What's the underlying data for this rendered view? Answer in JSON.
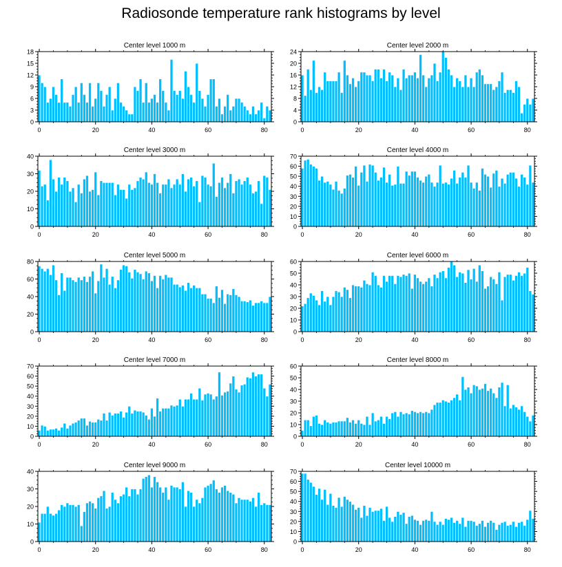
{
  "title": "Radiosonde temperature rank histograms by level",
  "colors": {
    "bar": "#00BFFF",
    "bar_edge": "#FFFFFF",
    "axis": "#000000"
  },
  "chart_data": [
    {
      "type": "bar",
      "title": "Center level 1000 m",
      "xlabel": "",
      "ylabel": "",
      "xlim": [
        -0.5,
        82.5
      ],
      "ylim": [
        0,
        18
      ],
      "xticks": [
        0,
        20,
        40,
        60,
        80
      ],
      "yticks": [
        0,
        3,
        6,
        9,
        12,
        15,
        18
      ],
      "values": [
        12,
        10,
        9,
        5,
        6,
        9,
        7,
        5,
        11,
        5,
        5,
        4,
        7,
        9,
        5,
        10,
        7,
        5,
        10,
        4,
        6,
        10,
        8,
        4,
        7,
        9,
        3,
        6,
        10,
        5,
        4,
        3,
        2,
        2,
        9,
        8,
        11,
        5,
        10,
        5,
        6,
        7,
        5,
        11,
        8,
        5,
        3,
        16,
        8,
        7,
        8,
        6,
        13,
        9,
        7,
        5,
        15,
        8,
        6,
        4,
        7,
        11,
        11,
        4,
        6,
        2,
        4,
        7,
        3,
        4,
        6,
        6,
        5,
        4,
        3,
        2,
        4,
        2,
        3,
        5,
        1,
        4,
        3
      ]
    },
    {
      "type": "bar",
      "title": "Center level 2000 m",
      "xlabel": "",
      "ylabel": "",
      "xlim": [
        -0.5,
        82.5
      ],
      "ylim": [
        0,
        24
      ],
      "xticks": [
        0,
        20,
        40,
        60,
        80
      ],
      "yticks": [
        0,
        4,
        8,
        12,
        16,
        20,
        24
      ],
      "values": [
        16,
        9,
        18,
        11,
        21,
        10,
        12,
        11,
        17,
        14,
        14,
        14,
        14,
        17,
        10,
        21,
        16,
        13,
        15,
        12,
        14,
        17,
        17,
        16,
        16,
        14,
        18,
        18,
        15,
        18,
        14,
        17,
        16,
        12,
        15,
        11,
        18,
        15,
        16,
        16,
        17,
        15,
        23,
        16,
        12,
        15,
        16,
        20,
        14,
        17,
        24,
        22,
        18,
        16,
        12,
        15,
        14,
        12,
        16,
        12,
        15,
        12,
        17,
        18,
        16,
        13,
        13,
        13,
        11,
        12,
        14,
        17,
        10,
        11,
        11,
        10,
        14,
        12,
        3,
        6,
        8,
        6,
        8
      ]
    },
    {
      "type": "bar",
      "title": "Center level 3000 m",
      "xlabel": "",
      "ylabel": "",
      "xlim": [
        -0.5,
        82.5
      ],
      "ylim": [
        0,
        40
      ],
      "xticks": [
        0,
        20,
        40,
        60,
        80
      ],
      "yticks": [
        0,
        10,
        20,
        30,
        40
      ],
      "values": [
        32,
        23,
        24,
        15,
        38,
        27,
        20,
        28,
        24,
        28,
        26,
        20,
        22,
        14,
        24,
        19,
        27,
        29,
        20,
        21,
        31,
        18,
        26,
        25,
        25,
        25,
        25,
        18,
        24,
        21,
        21,
        16,
        24,
        21,
        22,
        26,
        28,
        27,
        31,
        25,
        24,
        30,
        25,
        19,
        24,
        24,
        27,
        22,
        24,
        27,
        24,
        30,
        20,
        27,
        28,
        23,
        26,
        14,
        29,
        28,
        24,
        23,
        36,
        17,
        25,
        28,
        22,
        25,
        30,
        19,
        26,
        27,
        24,
        26,
        28,
        24,
        19,
        20,
        26,
        13,
        29,
        28,
        21
      ]
    },
    {
      "type": "bar",
      "title": "Center level 4000 m",
      "xlabel": "",
      "ylabel": "",
      "xlim": [
        -0.5,
        82.5
      ],
      "ylim": [
        0,
        70
      ],
      "xticks": [
        0,
        20,
        40,
        60,
        80
      ],
      "yticks": [
        0,
        10,
        20,
        30,
        40,
        50,
        60,
        70
      ],
      "values": [
        58,
        66,
        67,
        62,
        60,
        58,
        46,
        50,
        44,
        45,
        42,
        37,
        45,
        36,
        33,
        38,
        51,
        52,
        49,
        60,
        41,
        54,
        61,
        45,
        62,
        61,
        54,
        46,
        49,
        59,
        44,
        52,
        41,
        42,
        60,
        43,
        43,
        55,
        51,
        55,
        55,
        49,
        46,
        44,
        50,
        52,
        44,
        40,
        44,
        61,
        43,
        44,
        42,
        48,
        56,
        43,
        49,
        54,
        49,
        61,
        44,
        38,
        44,
        36,
        58,
        52,
        50,
        39,
        53,
        56,
        40,
        48,
        43,
        52,
        54,
        54,
        48,
        40,
        52,
        49,
        42,
        61,
        44
      ]
    },
    {
      "type": "bar",
      "title": "Center level 5000 m",
      "xlabel": "",
      "ylabel": "",
      "xlim": [
        -0.5,
        82.5
      ],
      "ylim": [
        0,
        80
      ],
      "xticks": [
        0,
        20,
        40,
        60,
        80
      ],
      "yticks": [
        0,
        20,
        40,
        60,
        80
      ],
      "values": [
        75,
        72,
        69,
        72,
        65,
        76,
        59,
        42,
        67,
        47,
        62,
        62,
        59,
        57,
        62,
        59,
        63,
        57,
        63,
        69,
        44,
        58,
        77,
        62,
        72,
        54,
        63,
        50,
        59,
        71,
        76,
        75,
        68,
        61,
        71,
        68,
        66,
        60,
        69,
        67,
        58,
        64,
        50,
        64,
        60,
        65,
        62,
        62,
        54,
        54,
        51,
        53,
        47,
        56,
        50,
        53,
        50,
        50,
        43,
        43,
        38,
        38,
        33,
        52,
        39,
        48,
        32,
        43,
        42,
        49,
        42,
        40,
        35,
        35,
        34,
        36,
        30,
        33,
        33,
        35,
        33,
        33,
        40
      ]
    },
    {
      "type": "bar",
      "title": "Center level 6000 m",
      "xlabel": "",
      "ylabel": "",
      "xlim": [
        -0.5,
        82.5
      ],
      "ylim": [
        0,
        60
      ],
      "xticks": [
        0,
        20,
        40,
        60,
        80
      ],
      "yticks": [
        0,
        10,
        20,
        30,
        40,
        50,
        60
      ],
      "values": [
        22,
        24,
        29,
        33,
        31,
        27,
        23,
        35,
        26,
        30,
        23,
        30,
        35,
        34,
        30,
        38,
        36,
        29,
        40,
        39,
        39,
        38,
        44,
        41,
        40,
        51,
        48,
        40,
        38,
        48,
        43,
        48,
        48,
        41,
        48,
        47,
        49,
        48,
        50,
        37,
        49,
        46,
        43,
        41,
        43,
        46,
        39,
        49,
        46,
        51,
        52,
        46,
        55,
        60,
        57,
        47,
        51,
        50,
        42,
        53,
        45,
        54,
        43,
        57,
        52,
        37,
        39,
        47,
        45,
        41,
        51,
        27,
        47,
        49,
        49,
        44,
        48,
        51,
        48,
        50,
        55,
        35,
        32
      ]
    },
    {
      "type": "bar",
      "title": "Center level 7000 m",
      "xlabel": "",
      "ylabel": "",
      "xlim": [
        -0.5,
        82.5
      ],
      "ylim": [
        0,
        70
      ],
      "xticks": [
        0,
        20,
        40,
        60,
        80
      ],
      "yticks": [
        0,
        10,
        20,
        30,
        40,
        50,
        60,
        70
      ],
      "values": [
        6,
        11,
        10,
        6,
        7,
        7,
        8,
        6,
        9,
        13,
        8,
        11,
        13,
        14,
        16,
        18,
        18,
        11,
        15,
        14,
        14,
        17,
        16,
        23,
        16,
        24,
        21,
        23,
        23,
        25,
        19,
        24,
        30,
        23,
        26,
        25,
        25,
        24,
        21,
        17,
        28,
        20,
        38,
        25,
        28,
        28,
        28,
        31,
        30,
        31,
        37,
        30,
        37,
        37,
        43,
        37,
        37,
        48,
        36,
        42,
        43,
        42,
        37,
        40,
        64,
        41,
        44,
        45,
        53,
        60,
        47,
        44,
        51,
        52,
        59,
        58,
        64,
        60,
        62,
        62,
        48,
        40,
        52
      ]
    },
    {
      "type": "bar",
      "title": "Center level 8000 m",
      "xlabel": "",
      "ylabel": "",
      "xlim": [
        -0.5,
        82.5
      ],
      "ylim": [
        0,
        60
      ],
      "xticks": [
        0,
        20,
        40,
        60,
        80
      ],
      "yticks": [
        0,
        10,
        20,
        30,
        40,
        50,
        60
      ],
      "values": [
        5,
        14,
        14,
        9,
        17,
        18,
        11,
        10,
        14,
        12,
        11,
        12,
        12,
        13,
        13,
        13,
        16,
        12,
        14,
        11,
        14,
        11,
        10,
        17,
        10,
        20,
        13,
        14,
        17,
        11,
        17,
        15,
        20,
        21,
        17,
        21,
        19,
        20,
        19,
        22,
        21,
        20,
        21,
        20,
        21,
        20,
        23,
        27,
        29,
        29,
        31,
        30,
        29,
        31,
        33,
        36,
        31,
        51,
        40,
        42,
        37,
        44,
        43,
        40,
        41,
        45,
        39,
        41,
        37,
        33,
        42,
        46,
        26,
        44,
        24,
        27,
        25,
        23,
        26,
        21,
        17,
        13,
        18
      ]
    },
    {
      "type": "bar",
      "title": "Center level 9000 m",
      "xlabel": "",
      "ylabel": "",
      "xlim": [
        -0.5,
        82.5
      ],
      "ylim": [
        0,
        40
      ],
      "xticks": [
        0,
        20,
        40,
        60,
        80
      ],
      "yticks": [
        0,
        10,
        20,
        30,
        40
      ],
      "values": [
        11,
        16,
        16,
        20,
        16,
        15,
        16,
        18,
        21,
        20,
        22,
        21,
        21,
        20,
        21,
        9,
        17,
        22,
        23,
        22,
        19,
        25,
        26,
        29,
        19,
        20,
        28,
        24,
        22,
        26,
        27,
        31,
        26,
        30,
        30,
        27,
        30,
        36,
        37,
        38,
        31,
        37,
        34,
        31,
        28,
        31,
        24,
        32,
        31,
        31,
        30,
        34,
        20,
        29,
        28,
        20,
        24,
        22,
        25,
        31,
        32,
        33,
        35,
        30,
        28,
        31,
        32,
        29,
        28,
        27,
        22,
        25,
        24,
        24,
        24,
        23,
        25,
        20,
        28,
        21,
        22,
        21,
        21
      ]
    },
    {
      "type": "bar",
      "title": "Center level 10000 m",
      "xlabel": "",
      "ylabel": "",
      "xlim": [
        -0.5,
        82.5
      ],
      "ylim": [
        0,
        70
      ],
      "xticks": [
        0,
        20,
        40,
        60,
        80
      ],
      "yticks": [
        0,
        10,
        20,
        30,
        40,
        50,
        60,
        70
      ],
      "values": [
        68,
        68,
        62,
        59,
        55,
        47,
        53,
        42,
        52,
        37,
        48,
        36,
        34,
        44,
        35,
        45,
        42,
        40,
        37,
        32,
        34,
        24,
        36,
        26,
        34,
        30,
        31,
        31,
        33,
        21,
        35,
        24,
        20,
        25,
        30,
        27,
        29,
        18,
        25,
        26,
        22,
        21,
        17,
        21,
        22,
        21,
        30,
        20,
        17,
        20,
        17,
        23,
        22,
        24,
        19,
        21,
        18,
        24,
        15,
        21,
        21,
        20,
        16,
        18,
        21,
        15,
        19,
        21,
        19,
        12,
        17,
        19,
        20,
        16,
        17,
        20,
        15,
        19,
        20,
        16,
        22,
        31,
        23
      ]
    }
  ]
}
